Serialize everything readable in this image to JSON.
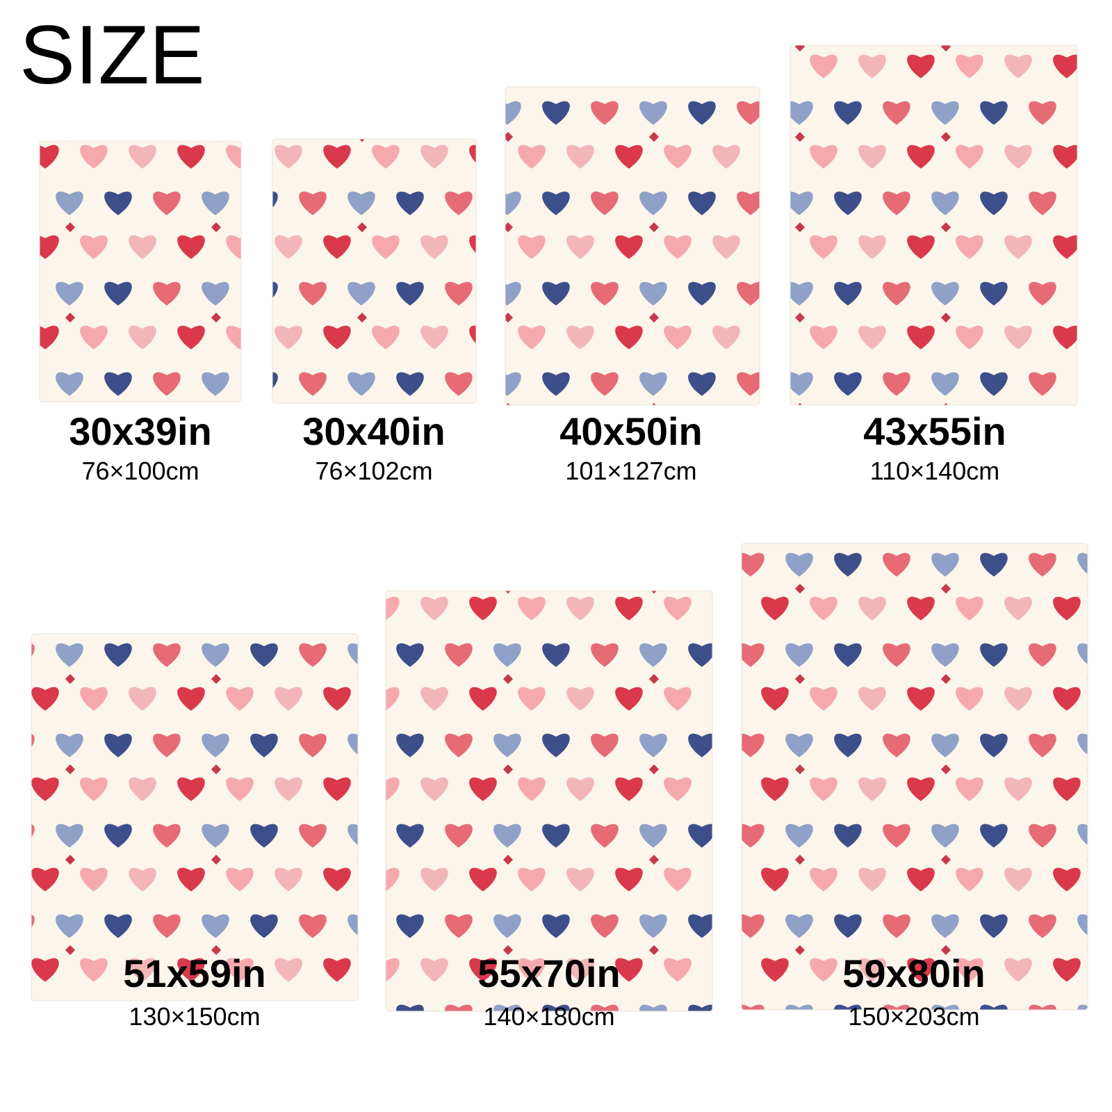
{
  "header": {
    "title": "SIZE"
  },
  "sizes": [
    {
      "inches": "30x39in",
      "cm": "76×100cm"
    },
    {
      "inches": "30x40in",
      "cm": "76×102cm"
    },
    {
      "inches": "40x50in",
      "cm": "101×127cm"
    },
    {
      "inches": "43x55in",
      "cm": "110×140cm"
    },
    {
      "inches": "51x59in",
      "cm": "130×150cm"
    },
    {
      "inches": "55x70in",
      "cm": "140×180cm"
    },
    {
      "inches": "59x80in",
      "cm": "150×203cm"
    }
  ]
}
